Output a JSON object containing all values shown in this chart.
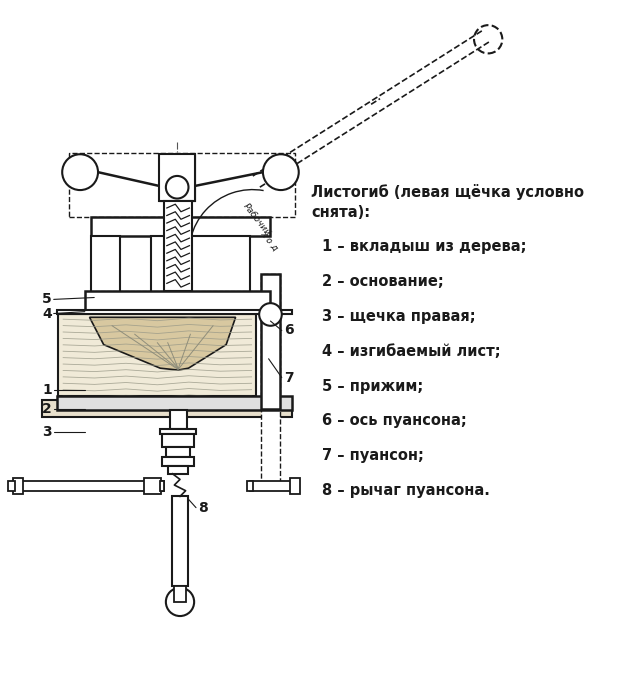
{
  "bg_color": "#ffffff",
  "line_color": "#1a1a1a",
  "legend_title": "Листогиб (левая щёчка условно\nснята):",
  "legend_items": [
    "1 – вкладыш из дерева;",
    "2 – основание;",
    "3 – щечка правая;",
    "4 – изгибаемый лист;",
    "5 – прижим;",
    "6 – ось пуансона;",
    "7 – пуансон;",
    "8 – рычаг пуансона."
  ],
  "figsize": [
    6.35,
    6.77
  ],
  "dpi": 100
}
